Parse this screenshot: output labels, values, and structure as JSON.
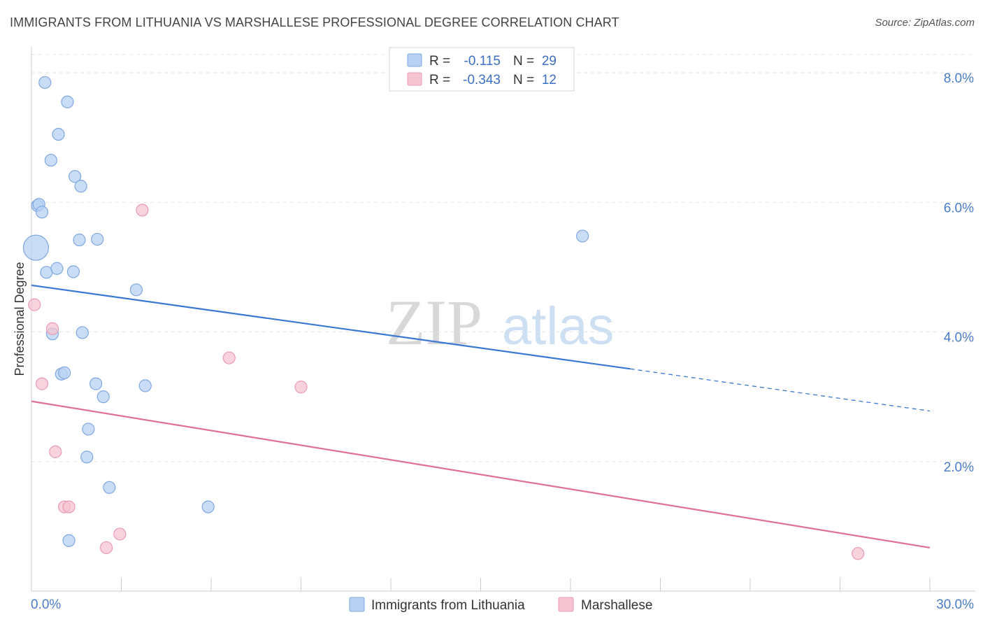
{
  "title": "IMMIGRANTS FROM LITHUANIA VS MARSHALLESE PROFESSIONAL DEGREE CORRELATION CHART",
  "source": "Source: ZipAtlas.com",
  "watermark": {
    "part1": "ZIP",
    "part2": "atlas"
  },
  "colors": {
    "series1_fill": "#b8d1f3",
    "series1_stroke": "#7fa8e0",
    "series1_line": "#3a78d4",
    "series2_fill": "#f6c3d2",
    "series2_stroke": "#e99bb3",
    "series2_line": "#e0709a",
    "grid": "#e3e3e3",
    "tick_text": "#4a7cc9"
  },
  "legend": {
    "rows": [
      {
        "r_label": "R =",
        "r_value": "-0.115",
        "n_label": "N =",
        "n_value": "29"
      },
      {
        "r_label": "R =",
        "r_value": "-0.343",
        "n_label": "N =",
        "n_value": "12"
      }
    ]
  },
  "chart_data": {
    "type": "scatter",
    "title": "IMMIGRANTS FROM LITHUANIA VS MARSHALLESE PROFESSIONAL DEGREE CORRELATION CHART",
    "xlabel": "",
    "ylabel": "Professional Degree",
    "xlim": [
      0,
      30
    ],
    "ylim": [
      0,
      8.4
    ],
    "x_tick_labels": [
      "0.0%",
      "30.0%"
    ],
    "y_ticks": [
      2,
      4,
      6,
      8
    ],
    "y_tick_labels": [
      "2.0%",
      "4.0%",
      "6.0%",
      "8.0%"
    ],
    "grid": true,
    "legend_position": "top-center",
    "series": [
      {
        "name": "Immigrants from Lithuania",
        "points": [
          {
            "x": 0.45,
            "y": 7.85
          },
          {
            "x": 1.2,
            "y": 7.55
          },
          {
            "x": 0.9,
            "y": 7.05
          },
          {
            "x": 0.65,
            "y": 6.65
          },
          {
            "x": 1.45,
            "y": 6.4
          },
          {
            "x": 1.65,
            "y": 6.25
          },
          {
            "x": 0.2,
            "y": 5.95
          },
          {
            "x": 0.25,
            "y": 5.97
          },
          {
            "x": 0.35,
            "y": 5.85
          },
          {
            "x": 1.6,
            "y": 5.42
          },
          {
            "x": 2.2,
            "y": 5.43
          },
          {
            "x": 0.15,
            "y": 5.3,
            "size": "large"
          },
          {
            "x": 0.5,
            "y": 4.92
          },
          {
            "x": 0.85,
            "y": 4.98
          },
          {
            "x": 1.4,
            "y": 4.93
          },
          {
            "x": 3.5,
            "y": 4.65
          },
          {
            "x": 0.7,
            "y": 3.97
          },
          {
            "x": 1.7,
            "y": 3.99
          },
          {
            "x": 1.0,
            "y": 3.35
          },
          {
            "x": 1.1,
            "y": 3.37
          },
          {
            "x": 2.15,
            "y": 3.2
          },
          {
            "x": 3.8,
            "y": 3.17
          },
          {
            "x": 2.4,
            "y": 3.0
          },
          {
            "x": 1.9,
            "y": 2.5
          },
          {
            "x": 1.85,
            "y": 2.07
          },
          {
            "x": 2.6,
            "y": 1.6
          },
          {
            "x": 5.9,
            "y": 1.3
          },
          {
            "x": 1.25,
            "y": 0.78
          },
          {
            "x": 18.4,
            "y": 5.48
          }
        ],
        "trend": {
          "x0": 0,
          "y0": 4.72,
          "x1": 20.0,
          "y1": 3.43,
          "dash_x1": 30,
          "dash_y1": 2.78
        }
      },
      {
        "name": "Marshallese",
        "points": [
          {
            "x": 0.1,
            "y": 4.42
          },
          {
            "x": 0.7,
            "y": 4.05
          },
          {
            "x": 3.7,
            "y": 5.88
          },
          {
            "x": 6.6,
            "y": 3.6
          },
          {
            "x": 0.35,
            "y": 3.2
          },
          {
            "x": 9.0,
            "y": 3.15
          },
          {
            "x": 0.8,
            "y": 2.15
          },
          {
            "x": 1.1,
            "y": 1.3
          },
          {
            "x": 1.25,
            "y": 1.3
          },
          {
            "x": 2.95,
            "y": 0.88
          },
          {
            "x": 2.5,
            "y": 0.67
          },
          {
            "x": 27.6,
            "y": 0.58
          }
        ],
        "trend": {
          "x0": 0,
          "y0": 2.93,
          "x1": 30,
          "y1": 0.67
        }
      }
    ]
  }
}
